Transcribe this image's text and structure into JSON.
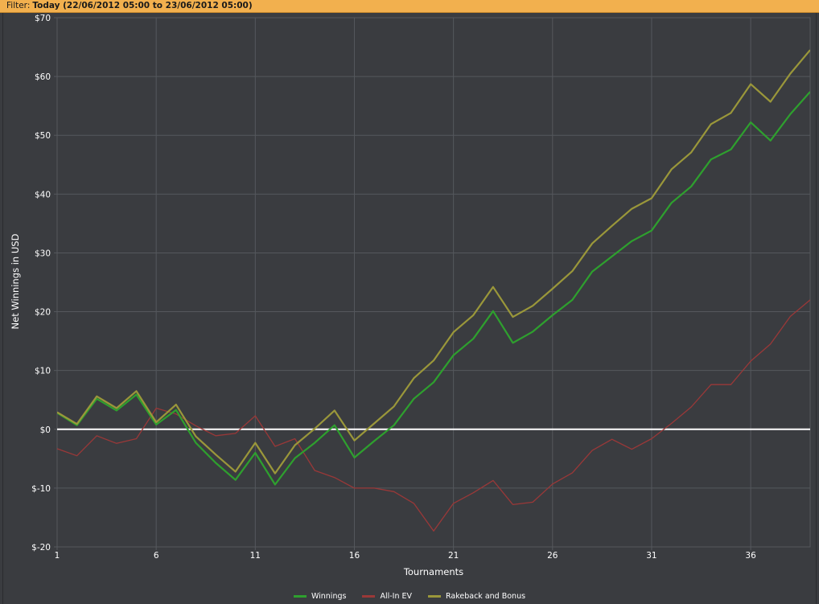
{
  "filter": {
    "label": "Filter:",
    "value": "Today (22/06/2012 05:00 to 23/06/2012 05:00)"
  },
  "colors": {
    "background": "#3a3c40",
    "grid": "#55585d",
    "zero_line": "#ffffff",
    "filter_bar": "#f2b04e"
  },
  "chart_data": {
    "type": "line",
    "xlabel": "Tournaments",
    "ylabel": "Net Winnings in USD",
    "xlim": [
      1,
      39
    ],
    "ylim": [
      -20,
      70
    ],
    "x_ticks": [
      1,
      6,
      11,
      16,
      21,
      26,
      31,
      36
    ],
    "y_ticks": [
      -20,
      -10,
      0,
      10,
      20,
      30,
      40,
      50,
      60,
      70
    ],
    "y_tick_labels": [
      "$-20",
      "$-10",
      "$0",
      "$10",
      "$20",
      "$30",
      "$40",
      "$50",
      "$60",
      "$70"
    ],
    "grid": true,
    "legend_position": "bottom-center",
    "x": [
      1,
      2,
      3,
      4,
      5,
      6,
      7,
      8,
      9,
      10,
      11,
      12,
      13,
      14,
      15,
      16,
      17,
      18,
      19,
      20,
      21,
      22,
      23,
      24,
      25,
      26,
      27,
      28,
      29,
      30,
      31,
      32,
      33,
      34,
      35,
      36,
      37,
      38,
      39
    ],
    "series": [
      {
        "name": "Winnings",
        "color": "#2ea02e",
        "values": [
          2.8,
          0.7,
          5.2,
          3.2,
          5.9,
          0.8,
          3.3,
          -2.3,
          -5.7,
          -8.6,
          -4.0,
          -9.4,
          -4.9,
          -2.3,
          0.7,
          -4.8,
          -2.0,
          0.7,
          5.2,
          8.0,
          12.6,
          15.4,
          20.1,
          14.7,
          16.6,
          19.4,
          22.0,
          26.8,
          29.4,
          32.0,
          33.8,
          38.5,
          41.3,
          45.9,
          47.6,
          52.2,
          49.1,
          53.6,
          57.4
        ]
      },
      {
        "name": "All-In EV",
        "color": "#9a3838",
        "values": [
          -3.3,
          -4.5,
          -1.1,
          -2.4,
          -1.6,
          3.6,
          2.6,
          0.6,
          -1.1,
          -0.7,
          2.3,
          -2.9,
          -1.6,
          -7.0,
          -8.2,
          -10.0,
          -10.0,
          -10.6,
          -12.6,
          -17.3,
          -12.6,
          -10.8,
          -8.7,
          -12.8,
          -12.4,
          -9.3,
          -7.4,
          -3.6,
          -1.7,
          -3.4,
          -1.6,
          1.0,
          3.8,
          7.6,
          7.6,
          11.6,
          14.5,
          19.2,
          22.0
        ]
      },
      {
        "name": "Rakeback and Bonus",
        "color": "#9a973a",
        "values": [
          2.9,
          0.9,
          5.6,
          3.6,
          6.5,
          1.2,
          4.2,
          -1.2,
          -4.3,
          -7.2,
          -2.3,
          -7.5,
          -2.7,
          0.1,
          3.2,
          -1.9,
          1.0,
          3.9,
          8.7,
          11.7,
          16.5,
          19.4,
          24.2,
          19.1,
          21.0,
          23.9,
          26.9,
          31.6,
          34.6,
          37.5,
          39.3,
          44.2,
          47.1,
          51.9,
          53.8,
          58.7,
          55.7,
          60.5,
          64.5
        ]
      }
    ]
  }
}
